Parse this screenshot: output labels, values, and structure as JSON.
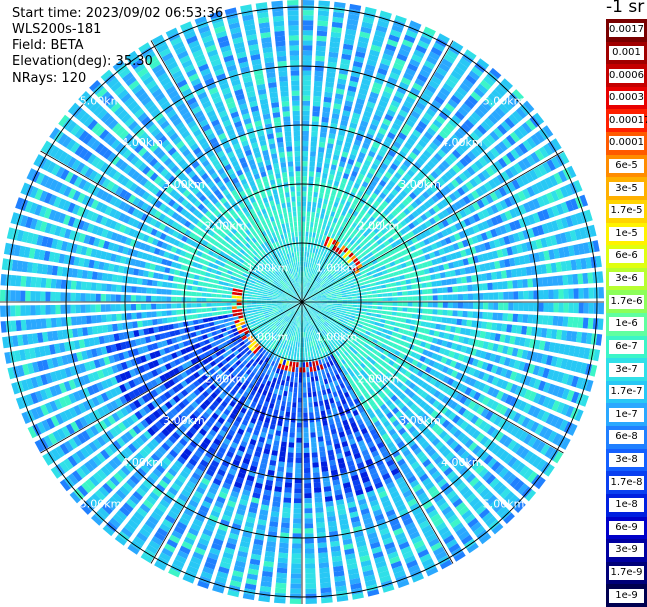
{
  "info": {
    "start_time": "Start time: 2023/09/02 06:53:36",
    "instrument": "WLS200s-181",
    "field": "Field: BETA",
    "elevation": "Elevation(deg): 35.30",
    "nrays": "NRays: 120"
  },
  "colorbar": {
    "title": "-1 sr",
    "labels": [
      "0.0017",
      "0.001",
      "0.0006",
      "0.0003",
      "0.00017",
      "0.0001",
      "6e-5",
      "3e-5",
      "1.7e-5",
      "1e-5",
      "6e-6",
      "3e-6",
      "1.7e-6",
      "1e-6",
      "6e-7",
      "3e-7",
      "1.7e-7",
      "1e-7",
      "6e-8",
      "3e-8",
      "1.7e-8",
      "1e-8",
      "6e-9",
      "3e-9",
      "1.7e-9",
      "1e-9"
    ],
    "colors": [
      "#7a0000",
      "#a00000",
      "#c40000",
      "#e80000",
      "#ff2000",
      "#ff5a00",
      "#ff8c00",
      "#ffb000",
      "#ffd400",
      "#fff200",
      "#e0ff10",
      "#b8ff30",
      "#8cff5a",
      "#60ffa0",
      "#3cf5c8",
      "#30e0e8",
      "#28c8f5",
      "#2aa8ff",
      "#2080ff",
      "#1460ff",
      "#0a40f0",
      "#0020e0",
      "#0000c8",
      "#0000a0",
      "#000078",
      "#000050"
    ]
  },
  "range_labels": [
    "1.00km",
    "2.00km",
    "3.00km",
    "4.00km",
    "5.00km"
  ],
  "chart_data": {
    "type": "heatmap",
    "projection": "polar PPI",
    "field": "BETA",
    "units": "-1 sr",
    "n_rays": 120,
    "rings_km": [
      1,
      2,
      3,
      4,
      5
    ],
    "scale": "log",
    "colorbar_range": [
      1e-09,
      0.0017
    ]
  }
}
